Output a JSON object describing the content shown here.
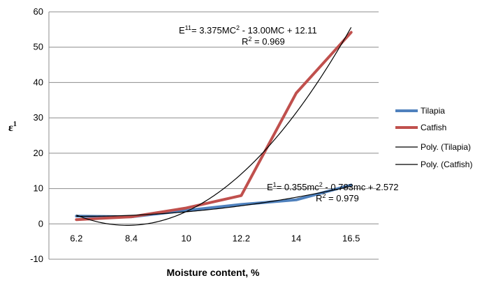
{
  "chart_data": {
    "type": "line",
    "categories": [
      "6.2",
      "8.4",
      "10",
      "12.2",
      "14",
      "16.5"
    ],
    "xlabel": "Moisture content, %",
    "ylabel": "ε",
    "ylabel_sup": "1",
    "ylim": [
      -10,
      60
    ],
    "yticks": [
      "60",
      "50",
      "40",
      "30",
      "20",
      "10",
      "0",
      "-10"
    ],
    "grid": true,
    "legend_position": "right",
    "series": [
      {
        "name": "Tilapia",
        "values": [
          2.2,
          2.0,
          3.8,
          5.5,
          6.8,
          11.0
        ],
        "color": "#4f81bd"
      },
      {
        "name": "Catfish",
        "values": [
          1.2,
          2.0,
          4.5,
          8.0,
          37.0,
          54.2
        ],
        "color": "#c0504d"
      }
    ],
    "trendlines": [
      {
        "name": "Poly. (Tilapia)",
        "type": "polynomial",
        "color": "#000000",
        "coefficients": [
          0.355,
          -0.783,
          2.572
        ]
      },
      {
        "name": "Poly. (Catfish)",
        "type": "polynomial",
        "color": "#000000",
        "coefficients": [
          3.375,
          -13.0,
          12.11
        ]
      }
    ],
    "annotations": {
      "catfish_eq_prefix": "E",
      "catfish_eq_sup": "11",
      "catfish_eq_mid": "= 3.375MC",
      "catfish_eq_sq": "2",
      "catfish_eq_rest": " - 13.00MC + 12.11",
      "catfish_r2_prefix": "R",
      "catfish_r2_sq": "2",
      "catfish_r2_rest": " = 0.969",
      "tilapia_eq_prefix": "E",
      "tilapia_eq_sup": "1",
      "tilapia_eq_mid": "= 0.355mc",
      "tilapia_eq_sq": "2",
      "tilapia_eq_rest": " - 0.783mc + 2.572",
      "tilapia_r2_prefix": "R",
      "tilapia_r2_sq": "2",
      "tilapia_r2_rest": " = 0.979"
    }
  }
}
